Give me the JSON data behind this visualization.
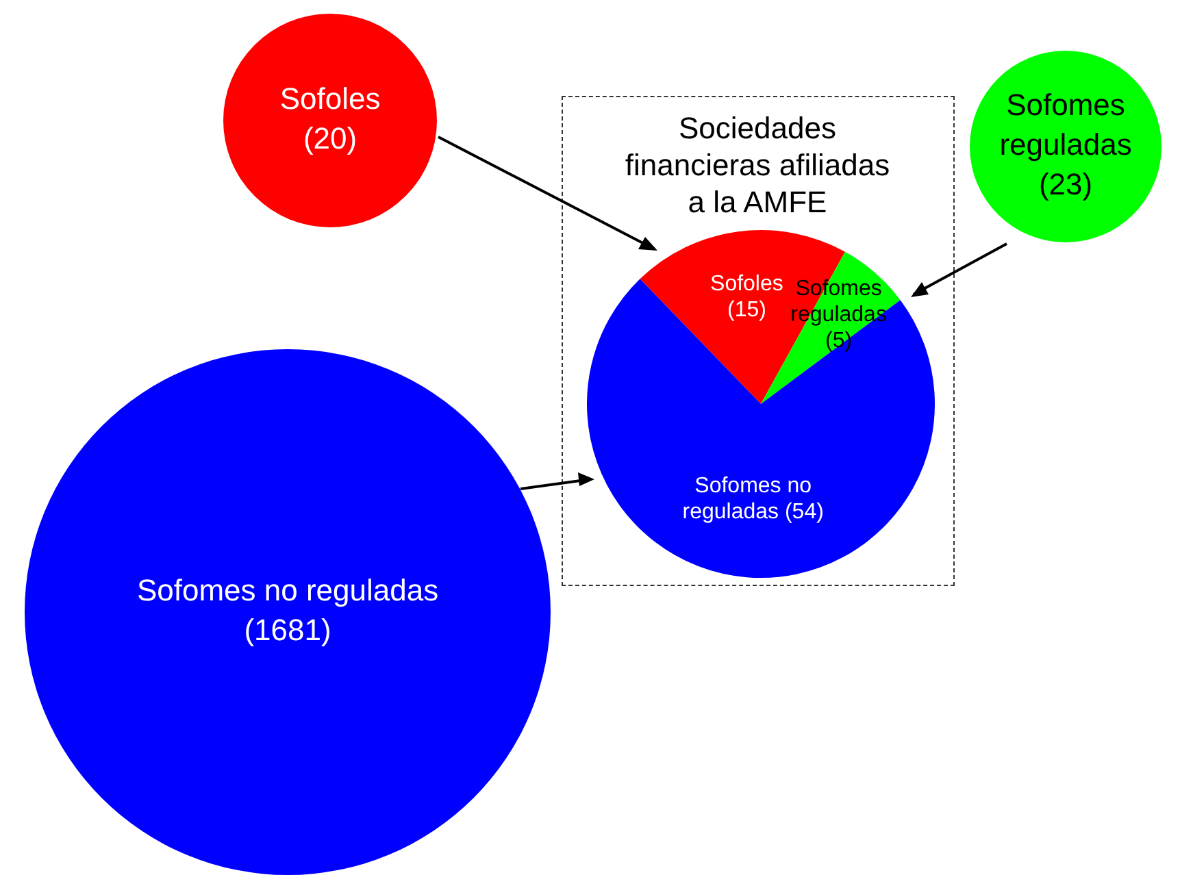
{
  "chart_data": [
    {
      "type": "pie",
      "title": "Sociedades financieras afiliadas a la AMFE",
      "categories": [
        "Sofoles",
        "Sofomes reguladas",
        "Sofomes no reguladas"
      ],
      "values": [
        15,
        5,
        54
      ],
      "value_labels": [
        "(15)",
        "(5)",
        "(54)"
      ],
      "colors": [
        "#ff0000",
        "#00ff00",
        "#0000ff"
      ]
    },
    {
      "type": "other",
      "categories": [
        "Sofoles",
        "Sofomes reguladas",
        "Sofomes no reguladas"
      ],
      "values": [
        20,
        23,
        1681
      ],
      "value_labels": [
        "(20)",
        "(23)",
        "(1681)"
      ],
      "colors": [
        "#ff0000",
        "#00ff00",
        "#0000ff"
      ]
    }
  ]
}
